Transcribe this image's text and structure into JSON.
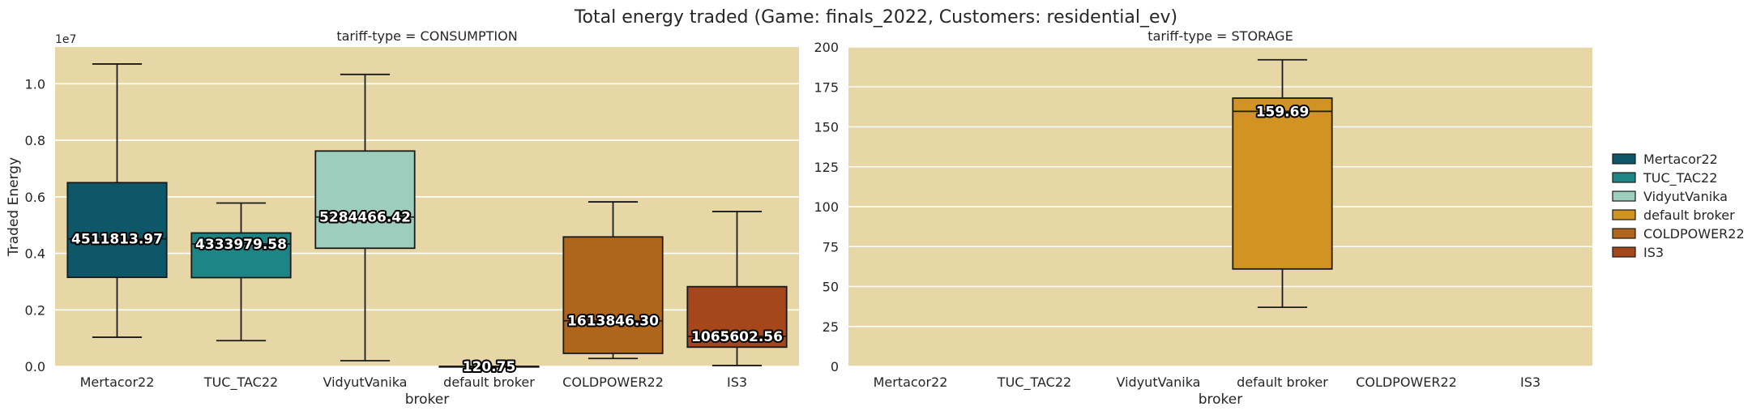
{
  "chart_data": {
    "title": "Total energy traded (Game: finals_2022, Customers: residential_ev)",
    "type": "box",
    "categories": [
      "Mertacor22",
      "TUC_TAC22",
      "VidyutVanika",
      "default broker",
      "COLDPOWER22",
      "IS3"
    ],
    "colors": {
      "Mertacor22": "#0d5769",
      "TUC_TAC22": "#1d8585",
      "VidyutVanika": "#9dcdbd",
      "default broker": "#d19321",
      "COLDPOWER22": "#af661c",
      "IS3": "#a5471b"
    },
    "legend": {
      "placement": "right",
      "entries": [
        "Mertacor22",
        "TUC_TAC22",
        "VidyutVanika",
        "default broker",
        "COLDPOWER22",
        "IS3"
      ]
    },
    "grid": true,
    "panel_background": "#e8d7a6",
    "panels": [
      {
        "title": "tariff-type = CONSUMPTION",
        "xlabel": "broker",
        "ylabel": "Traded Energy",
        "ylim": [
          0,
          11300000
        ],
        "yticks": [
          0,
          2000000,
          4000000,
          6000000,
          8000000,
          10000000
        ],
        "ytick_labels": [
          "0.0",
          "0.2",
          "0.4",
          "0.6",
          "0.8",
          "1.0"
        ],
        "offset_label": "1e7",
        "boxes": [
          {
            "broker": "Mertacor22",
            "whislo": 1030000,
            "q1": 3150000,
            "med": 4511813.97,
            "q3": 6500000,
            "whishi": 10700000,
            "label": "4511813.97"
          },
          {
            "broker": "TUC_TAC22",
            "whislo": 910000,
            "q1": 3140000,
            "med": 4333979.58,
            "q3": 4720000,
            "whishi": 5780000,
            "label": "4333979.58"
          },
          {
            "broker": "VidyutVanika",
            "whislo": 200000,
            "q1": 4180000,
            "med": 5284466.42,
            "q3": 7620000,
            "whishi": 10330000,
            "label": "5284466.42"
          },
          {
            "broker": "default broker",
            "whislo": 0,
            "q1": 0,
            "med": 120.75,
            "q3": 500,
            "whishi": 1000,
            "label": "120.75"
          },
          {
            "broker": "COLDPOWER22",
            "whislo": 280000,
            "q1": 460000,
            "med": 1613846.3,
            "q3": 4580000,
            "whishi": 5820000,
            "label": "1613846.30"
          },
          {
            "broker": "IS3",
            "whislo": 30000,
            "q1": 680000,
            "med": 1065602.56,
            "q3": 2820000,
            "whishi": 5480000,
            "label": "1065602.56"
          }
        ]
      },
      {
        "title": "tariff-type = STORAGE",
        "xlabel": "broker",
        "ylabel": "",
        "ylim": [
          0,
          200
        ],
        "yticks": [
          0,
          25,
          50,
          75,
          100,
          125,
          150,
          175,
          200
        ],
        "ytick_labels": [
          "0",
          "25",
          "50",
          "75",
          "100",
          "125",
          "150",
          "175",
          "200"
        ],
        "offset_label": "",
        "boxes": [
          {
            "broker": "default broker",
            "whislo": 37,
            "q1": 61,
            "med": 159.69,
            "q3": 168,
            "whishi": 192,
            "label": "159.69"
          }
        ]
      }
    ]
  }
}
